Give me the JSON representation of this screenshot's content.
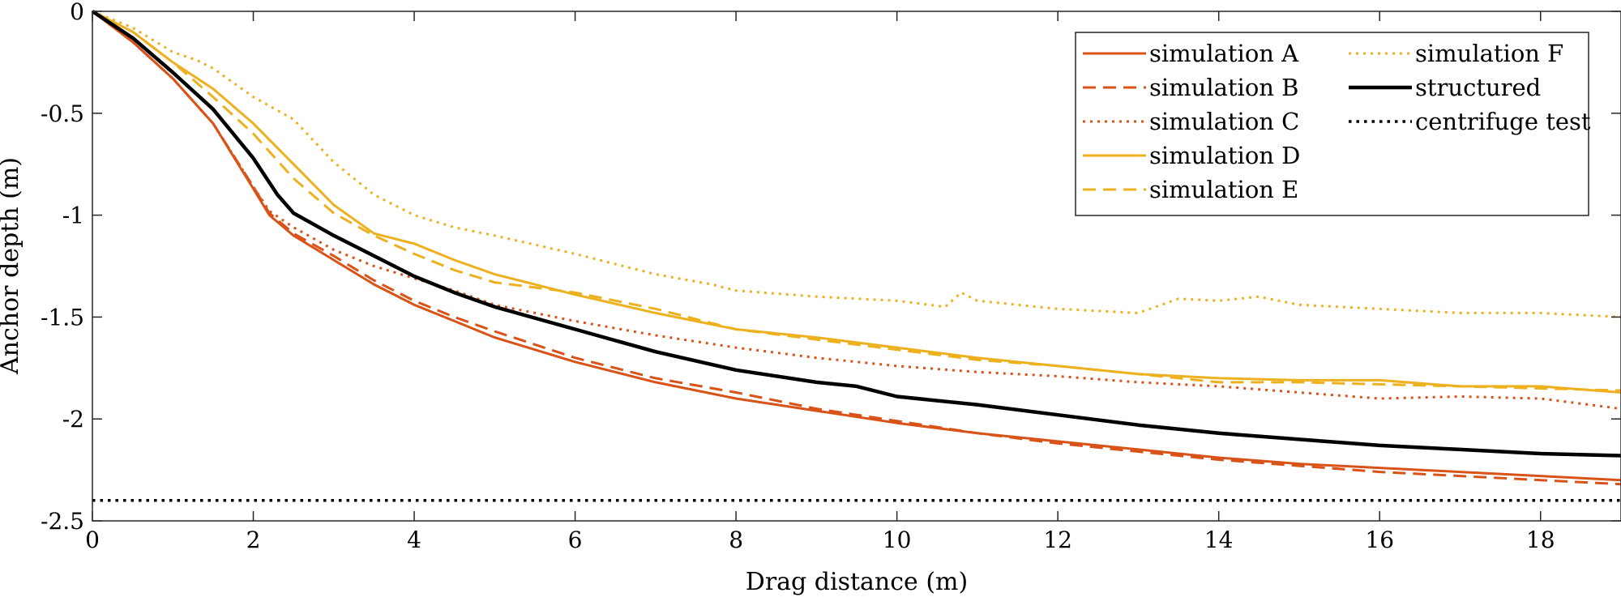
{
  "chart_data": {
    "type": "line",
    "title": "",
    "xlabel": "Drag distance (m)",
    "ylabel": "Anchor depth (m)",
    "xlim": [
      0,
      19
    ],
    "ylim": [
      -2.5,
      0
    ],
    "xticks": [
      0,
      2,
      4,
      6,
      8,
      10,
      12,
      14,
      16,
      18
    ],
    "yticks": [
      0,
      -0.5,
      -1,
      -1.5,
      -2,
      -2.5
    ],
    "xtick_labels": [
      "0",
      "2",
      "4",
      "6",
      "8",
      "10",
      "12",
      "14",
      "16",
      "18"
    ],
    "ytick_labels": [
      "0",
      "-0.5",
      "-1",
      "-1.5",
      "-2",
      "-2.5"
    ],
    "grid": false,
    "legend_position": "top-right",
    "series": [
      {
        "name": "simulation A",
        "color": "#d95319",
        "style": "solid",
        "x": [
          0,
          0.5,
          1,
          1.5,
          2,
          2.2,
          2.5,
          3,
          3.5,
          4,
          4.5,
          5,
          6,
          7,
          8,
          9,
          10,
          11,
          12,
          13,
          14,
          15,
          16,
          17,
          18,
          19
        ],
        "y": [
          0,
          -0.15,
          -0.33,
          -0.55,
          -0.87,
          -1.0,
          -1.1,
          -1.22,
          -1.34,
          -1.44,
          -1.52,
          -1.6,
          -1.72,
          -1.82,
          -1.9,
          -1.96,
          -2.02,
          -2.07,
          -2.11,
          -2.15,
          -2.19,
          -2.22,
          -2.24,
          -2.26,
          -2.28,
          -2.3
        ]
      },
      {
        "name": "simulation B",
        "color": "#d95319",
        "style": "dashed",
        "x": [
          0,
          0.5,
          1,
          1.5,
          2,
          2.2,
          2.5,
          3,
          3.5,
          4,
          4.5,
          5,
          6,
          7,
          8,
          9,
          10,
          11,
          12,
          13,
          14,
          15,
          16,
          17,
          18,
          19
        ],
        "y": [
          0,
          -0.15,
          -0.33,
          -0.55,
          -0.86,
          -0.99,
          -1.09,
          -1.2,
          -1.32,
          -1.42,
          -1.5,
          -1.57,
          -1.7,
          -1.8,
          -1.87,
          -1.95,
          -2.01,
          -2.07,
          -2.12,
          -2.16,
          -2.2,
          -2.23,
          -2.26,
          -2.28,
          -2.3,
          -2.32
        ]
      },
      {
        "name": "simulation C",
        "color": "#d95319",
        "style": "dotted",
        "x": [
          0,
          0.5,
          1,
          1.5,
          2,
          2.2,
          2.5,
          3,
          3.5,
          4,
          4.5,
          5,
          6,
          7,
          8,
          9,
          10,
          11,
          12,
          13,
          14,
          15,
          16,
          17,
          18,
          19
        ],
        "y": [
          0,
          -0.15,
          -0.33,
          -0.55,
          -0.86,
          -0.98,
          -1.06,
          -1.17,
          -1.25,
          -1.31,
          -1.37,
          -1.44,
          -1.52,
          -1.59,
          -1.65,
          -1.7,
          -1.74,
          -1.77,
          -1.79,
          -1.82,
          -1.84,
          -1.87,
          -1.9,
          -1.89,
          -1.9,
          -1.95
        ]
      },
      {
        "name": "simulation D",
        "color": "#edb120",
        "style": "solid",
        "x": [
          0,
          0.5,
          1,
          1.5,
          2,
          2.5,
          3,
          3.5,
          4,
          4.5,
          5,
          6,
          7,
          8,
          9,
          10,
          11,
          12,
          13,
          14,
          15,
          16,
          17,
          18,
          19
        ],
        "y": [
          0,
          -0.1,
          -0.25,
          -0.38,
          -0.55,
          -0.75,
          -0.95,
          -1.09,
          -1.14,
          -1.22,
          -1.29,
          -1.39,
          -1.48,
          -1.56,
          -1.6,
          -1.65,
          -1.7,
          -1.74,
          -1.78,
          -1.8,
          -1.81,
          -1.81,
          -1.84,
          -1.84,
          -1.87
        ]
      },
      {
        "name": "simulation E",
        "color": "#edb120",
        "style": "dashed",
        "x": [
          0,
          0.5,
          1,
          1.5,
          2,
          2.5,
          3,
          3.5,
          4,
          4.5,
          5,
          6,
          7,
          8,
          9,
          10,
          11,
          12,
          13,
          14,
          15,
          16,
          17,
          18,
          19
        ],
        "y": [
          0,
          -0.1,
          -0.25,
          -0.42,
          -0.6,
          -0.82,
          -0.99,
          -1.1,
          -1.19,
          -1.27,
          -1.33,
          -1.38,
          -1.46,
          -1.56,
          -1.61,
          -1.66,
          -1.71,
          -1.74,
          -1.78,
          -1.82,
          -1.82,
          -1.83,
          -1.84,
          -1.85,
          -1.86
        ]
      },
      {
        "name": "simulation F",
        "color": "#edb120",
        "style": "dotted",
        "x": [
          0,
          0.5,
          1,
          1.3,
          1.5,
          2,
          2.5,
          3,
          3.5,
          4,
          4.5,
          5,
          6,
          7,
          7.7,
          8,
          9,
          10,
          10.6,
          10.8,
          11,
          12,
          13,
          13.5,
          14,
          14.5,
          15,
          16,
          17,
          18,
          19
        ],
        "y": [
          0,
          -0.08,
          -0.2,
          -0.24,
          -0.28,
          -0.42,
          -0.53,
          -0.74,
          -0.9,
          -1.0,
          -1.06,
          -1.1,
          -1.19,
          -1.29,
          -1.34,
          -1.37,
          -1.4,
          -1.42,
          -1.45,
          -1.38,
          -1.42,
          -1.46,
          -1.48,
          -1.41,
          -1.42,
          -1.4,
          -1.44,
          -1.46,
          -1.48,
          -1.48,
          -1.5
        ]
      },
      {
        "name": "structured",
        "color": "#000000",
        "style": "solid-thick",
        "x": [
          0,
          0.5,
          1,
          1.5,
          2,
          2.3,
          2.5,
          3,
          3.5,
          4,
          4.5,
          5,
          6,
          7,
          8,
          9,
          9.5,
          10,
          11,
          12,
          13,
          14,
          15,
          16,
          17,
          18,
          19
        ],
        "y": [
          0,
          -0.13,
          -0.3,
          -0.48,
          -0.72,
          -0.9,
          -0.99,
          -1.1,
          -1.2,
          -1.3,
          -1.38,
          -1.45,
          -1.56,
          -1.67,
          -1.76,
          -1.82,
          -1.84,
          -1.89,
          -1.93,
          -1.98,
          -2.03,
          -2.07,
          -2.1,
          -2.13,
          -2.15,
          -2.17,
          -2.18
        ]
      },
      {
        "name": "centrifuge test",
        "color": "#000000",
        "style": "dotted-thick",
        "x": [
          0,
          19
        ],
        "y": [
          -2.4,
          -2.4
        ]
      }
    ]
  }
}
